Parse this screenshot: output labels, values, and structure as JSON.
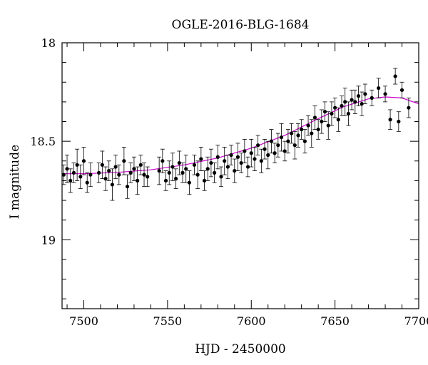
{
  "chart_data": {
    "type": "scatter",
    "title": "OGLE-2016-BLG-1684",
    "xlabel": "HJD - 2450000",
    "ylabel": "I magnitude",
    "xlim": [
      7487,
      7700
    ],
    "ylim": [
      18.0,
      19.35
    ],
    "y_inverted": true,
    "grid": false,
    "x_ticks": [
      7500,
      7550,
      7600,
      7650,
      7700
    ],
    "y_ticks": [
      18,
      18.5,
      19
    ],
    "x_tick_labels": [
      "7500",
      "7550",
      "7600",
      "7650",
      "7700"
    ],
    "y_tick_labels": [
      "18",
      "18.5",
      "19"
    ],
    "colors": {
      "points": "#000000",
      "model": "#cc00cc"
    },
    "series": [
      {
        "kind": "points_with_errorbars",
        "x": [
          7488,
          7490,
          7492,
          7494,
          7496,
          7498,
          7500,
          7502,
          7504,
          7509,
          7511,
          7513,
          7515,
          7517,
          7519,
          7521,
          7524,
          7526,
          7528,
          7530,
          7532,
          7534,
          7536,
          7538,
          7545,
          7547,
          7549,
          7551,
          7553,
          7555,
          7557,
          7559,
          7561,
          7563,
          7566,
          7568,
          7570,
          7572,
          7574,
          7576,
          7578,
          7580,
          7582,
          7584,
          7586,
          7588,
          7590,
          7592,
          7594,
          7596,
          7598,
          7600,
          7602,
          7604,
          7606,
          7608,
          7610,
          7612,
          7614,
          7616,
          7618,
          7620,
          7622,
          7624,
          7626,
          7628,
          7630,
          7632,
          7634,
          7636,
          7638,
          7640,
          7642,
          7644,
          7646,
          7648,
          7650,
          7652,
          7654,
          7656,
          7658,
          7660,
          7662,
          7664,
          7666,
          7668,
          7672,
          7676,
          7680,
          7683,
          7686,
          7688,
          7690,
          7694
        ],
        "y": [
          18.67,
          18.64,
          18.7,
          18.66,
          18.62,
          18.68,
          18.6,
          18.71,
          18.67,
          18.66,
          18.62,
          18.69,
          18.65,
          18.72,
          18.63,
          18.67,
          18.6,
          18.73,
          18.66,
          18.64,
          18.7,
          18.62,
          18.67,
          18.68,
          18.65,
          18.6,
          18.7,
          18.66,
          18.63,
          18.69,
          18.61,
          18.66,
          18.64,
          18.71,
          18.62,
          18.67,
          18.59,
          18.7,
          18.64,
          18.61,
          18.66,
          18.58,
          18.68,
          18.6,
          18.63,
          18.57,
          18.65,
          18.58,
          18.61,
          18.55,
          18.63,
          18.56,
          18.59,
          18.52,
          18.6,
          18.54,
          18.57,
          18.5,
          18.56,
          18.52,
          18.48,
          18.55,
          18.5,
          18.46,
          18.52,
          18.47,
          18.44,
          18.5,
          18.42,
          18.46,
          18.38,
          18.44,
          18.4,
          18.35,
          18.42,
          18.36,
          18.33,
          18.39,
          18.32,
          18.3,
          18.36,
          18.29,
          18.3,
          18.27,
          18.31,
          18.26,
          18.28,
          18.23,
          18.26,
          18.39,
          18.17,
          18.4,
          18.24,
          18.33
        ],
        "err": [
          0.05,
          0.07,
          0.06,
          0.05,
          0.08,
          0.06,
          0.07,
          0.05,
          0.06,
          0.05,
          0.07,
          0.06,
          0.05,
          0.08,
          0.06,
          0.05,
          0.07,
          0.06,
          0.05,
          0.06,
          0.07,
          0.05,
          0.06,
          0.05,
          0.07,
          0.06,
          0.05,
          0.06,
          0.07,
          0.05,
          0.06,
          0.05,
          0.07,
          0.06,
          0.05,
          0.07,
          0.06,
          0.05,
          0.06,
          0.07,
          0.05,
          0.06,
          0.05,
          0.07,
          0.06,
          0.05,
          0.06,
          0.07,
          0.05,
          0.06,
          0.05,
          0.07,
          0.06,
          0.05,
          0.06,
          0.05,
          0.07,
          0.06,
          0.05,
          0.06,
          0.07,
          0.05,
          0.06,
          0.05,
          0.07,
          0.06,
          0.05,
          0.06,
          0.05,
          0.07,
          0.06,
          0.05,
          0.06,
          0.05,
          0.07,
          0.06,
          0.05,
          0.06,
          0.05,
          0.07,
          0.06,
          0.05,
          0.06,
          0.05,
          0.06,
          0.05,
          0.04,
          0.05,
          0.04,
          0.05,
          0.04,
          0.05,
          0.04,
          0.05
        ]
      },
      {
        "kind": "model_curve",
        "x": [
          7487,
          7500,
          7520,
          7540,
          7560,
          7580,
          7600,
          7620,
          7640,
          7655,
          7670,
          7680,
          7690,
          7700
        ],
        "y": [
          18.665,
          18.665,
          18.658,
          18.645,
          18.62,
          18.585,
          18.535,
          18.47,
          18.385,
          18.325,
          18.285,
          18.275,
          18.28,
          18.31
        ]
      }
    ]
  }
}
